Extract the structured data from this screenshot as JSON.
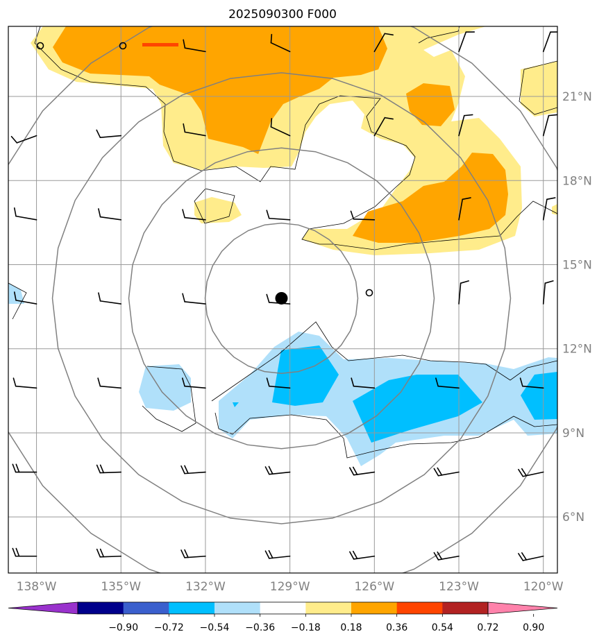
{
  "title": "2025090300 F000",
  "map": {
    "lon_range": [
      -139,
      -119.5
    ],
    "lat_range": [
      4,
      23.5
    ],
    "lon_ticks": [
      {
        "value": -138,
        "label": "138°W"
      },
      {
        "value": -135,
        "label": "135°W"
      },
      {
        "value": -132,
        "label": "132°W"
      },
      {
        "value": -129,
        "label": "129°W"
      },
      {
        "value": -126,
        "label": "126°W"
      },
      {
        "value": -123,
        "label": "123°W"
      },
      {
        "value": -120,
        "label": "120°W"
      }
    ],
    "lat_ticks": [
      {
        "value": 6,
        "label": "6°N"
      },
      {
        "value": 9,
        "label": "9°N"
      },
      {
        "value": 12,
        "label": "12°N"
      },
      {
        "value": 15,
        "label": "15°N"
      },
      {
        "value": 18,
        "label": "18°N"
      },
      {
        "value": 21,
        "label": "21°N"
      }
    ],
    "gridlines": true,
    "storm_center": {
      "lon": -129.3,
      "lat": 13.8
    },
    "range_rings": "concentric around storm center",
    "shading_colors": {
      "neg_strong": "#00bfff",
      "neg_weak": "#b0e0fa",
      "pos_weak": "#ffec8b",
      "pos_mid": "#ffa500",
      "pos_strong": "#ff4500"
    }
  },
  "colorbar": {
    "colors": [
      "#9932cc",
      "#00008b",
      "#3a5fcd",
      "#00bfff",
      "#b0e0fa",
      "#ffffff",
      "#ffec8b",
      "#ffa500",
      "#ff4500",
      "#b22222",
      "#ff82ab"
    ],
    "tick_labels": [
      "−0.90",
      "−0.72",
      "−0.54",
      "−0.36",
      "−0.18",
      "0.18",
      "0.36",
      "0.54",
      "0.72",
      "0.90"
    ]
  }
}
